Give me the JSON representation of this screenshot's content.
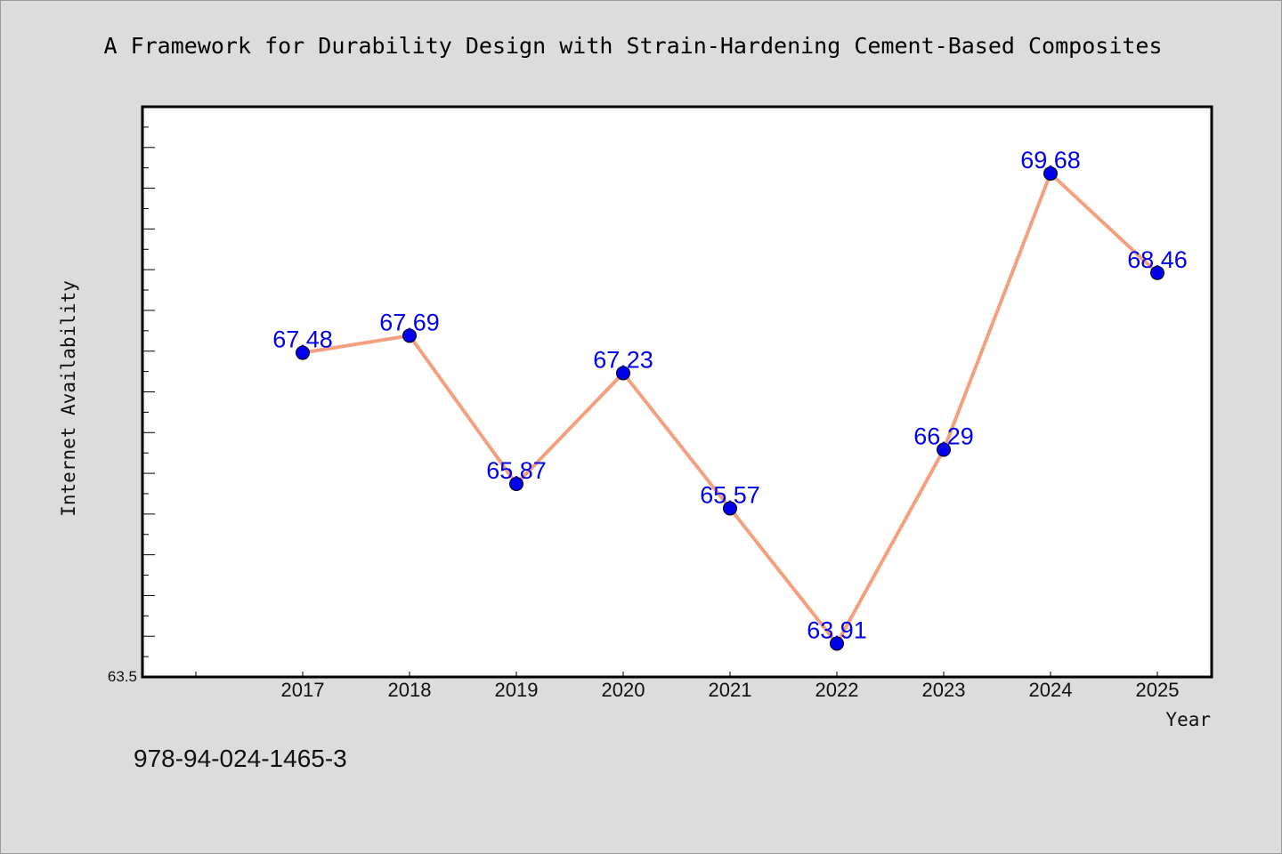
{
  "chart_data": {
    "type": "line",
    "title": "A Framework for Durability Design with Strain-Hardening Cement-Based Composites",
    "xlabel": "Year",
    "ylabel": "Internet Availability",
    "categories": [
      "2017",
      "2018",
      "2019",
      "2020",
      "2021",
      "2022",
      "2023",
      "2024",
      "2025"
    ],
    "series": [
      {
        "values": [
          67.48,
          67.69,
          65.87,
          67.23,
          65.57,
          63.91,
          66.29,
          69.68,
          68.46
        ],
        "labels": [
          "67.48",
          "67.69",
          "65.87",
          "67.23",
          "65.57",
          "63.91",
          "66.29",
          "69.68",
          "68.46"
        ]
      }
    ],
    "ylim": [
      63.5,
      70.5
    ],
    "y_tick_labels": [
      "63.5"
    ],
    "grid": false,
    "legend": "none",
    "colors": {
      "line": "#f4a07e",
      "marker": "#0000ee",
      "label": "#0000ee",
      "background": "#dcdcdc",
      "plot_area": "#ffffff"
    }
  },
  "footer_text": "978-94-024-1465-3"
}
